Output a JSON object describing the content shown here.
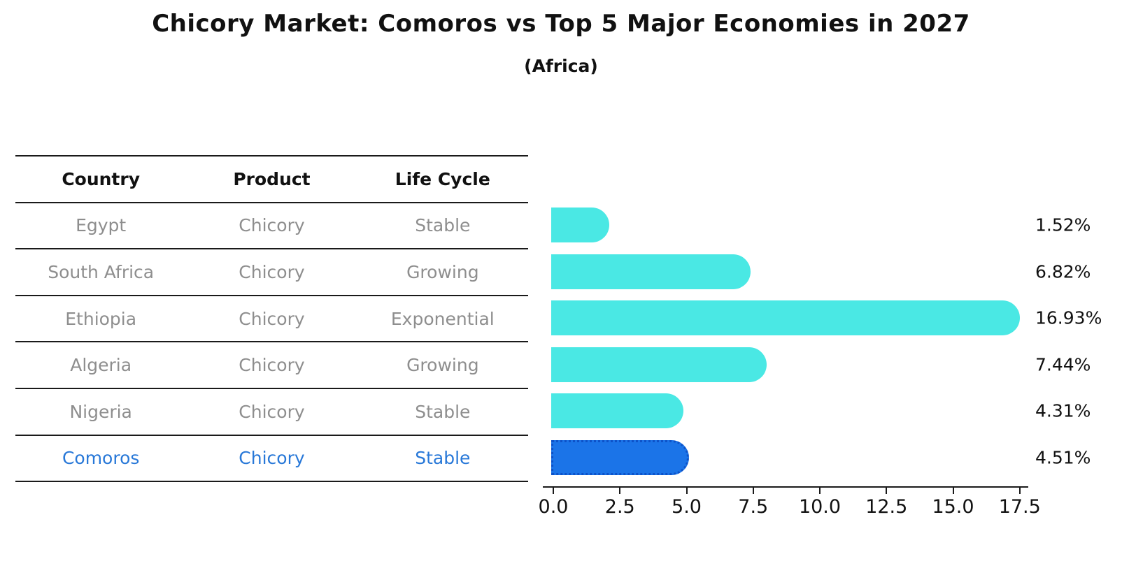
{
  "title": "Chicory Market: Comoros vs Top 5 Major Economies in 2027",
  "subtitle": "(Africa)",
  "table": {
    "headers": [
      "Country",
      "Product",
      "Life Cycle"
    ],
    "rows": [
      {
        "country": "Egypt",
        "product": "Chicory",
        "life_cycle": "Stable",
        "value": 1.52,
        "value_label": "1.52%",
        "highlight": false
      },
      {
        "country": "South Africa",
        "product": "Chicory",
        "life_cycle": "Growing",
        "value": 6.82,
        "value_label": "6.82%",
        "highlight": false
      },
      {
        "country": "Ethiopia",
        "product": "Chicory",
        "life_cycle": "Exponential",
        "value": 16.93,
        "value_label": "16.93%",
        "highlight": false
      },
      {
        "country": "Algeria",
        "product": "Chicory",
        "life_cycle": "Growing",
        "value": 7.44,
        "value_label": "7.44%",
        "highlight": false
      },
      {
        "country": "Nigeria",
        "product": "Chicory",
        "life_cycle": "Stable",
        "value": 4.31,
        "value_label": "4.31%",
        "highlight": false
      },
      {
        "country": "Comoros",
        "product": "Chicory",
        "life_cycle": "Stable",
        "value": 4.51,
        "value_label": "4.51%",
        "highlight": true
      }
    ]
  },
  "chart_data": {
    "type": "bar",
    "orientation": "horizontal",
    "title": "Chicory Market: Comoros vs Top 5 Major Economies in 2027",
    "subtitle": "(Africa)",
    "categories": [
      "Egypt",
      "South Africa",
      "Ethiopia",
      "Algeria",
      "Nigeria",
      "Comoros"
    ],
    "values": [
      1.52,
      6.82,
      16.93,
      7.44,
      4.31,
      4.51
    ],
    "value_labels": [
      "1.52%",
      "6.82%",
      "16.93%",
      "7.44%",
      "4.31%",
      "4.51%"
    ],
    "xlabel": "",
    "ylabel": "",
    "xlim": [
      0,
      17.5
    ],
    "x_ticks": [
      0.0,
      2.5,
      5.0,
      7.5,
      10.0,
      12.5,
      15.0,
      17.5
    ],
    "x_tick_labels": [
      "0.0",
      "2.5",
      "5.0",
      "7.5",
      "10.0",
      "12.5",
      "15.0",
      "17.5"
    ],
    "grid": false,
    "legend": false,
    "highlight_category": "Comoros"
  },
  "colors": {
    "bar_default": "#4ae8e4",
    "bar_highlight": "#1b74e8",
    "highlight_border": "#0d52c8",
    "highlight_text": "#2878d8",
    "muted_text": "#8e8e8e",
    "heading_text": "#111111",
    "axis": "#1a1a1a"
  }
}
